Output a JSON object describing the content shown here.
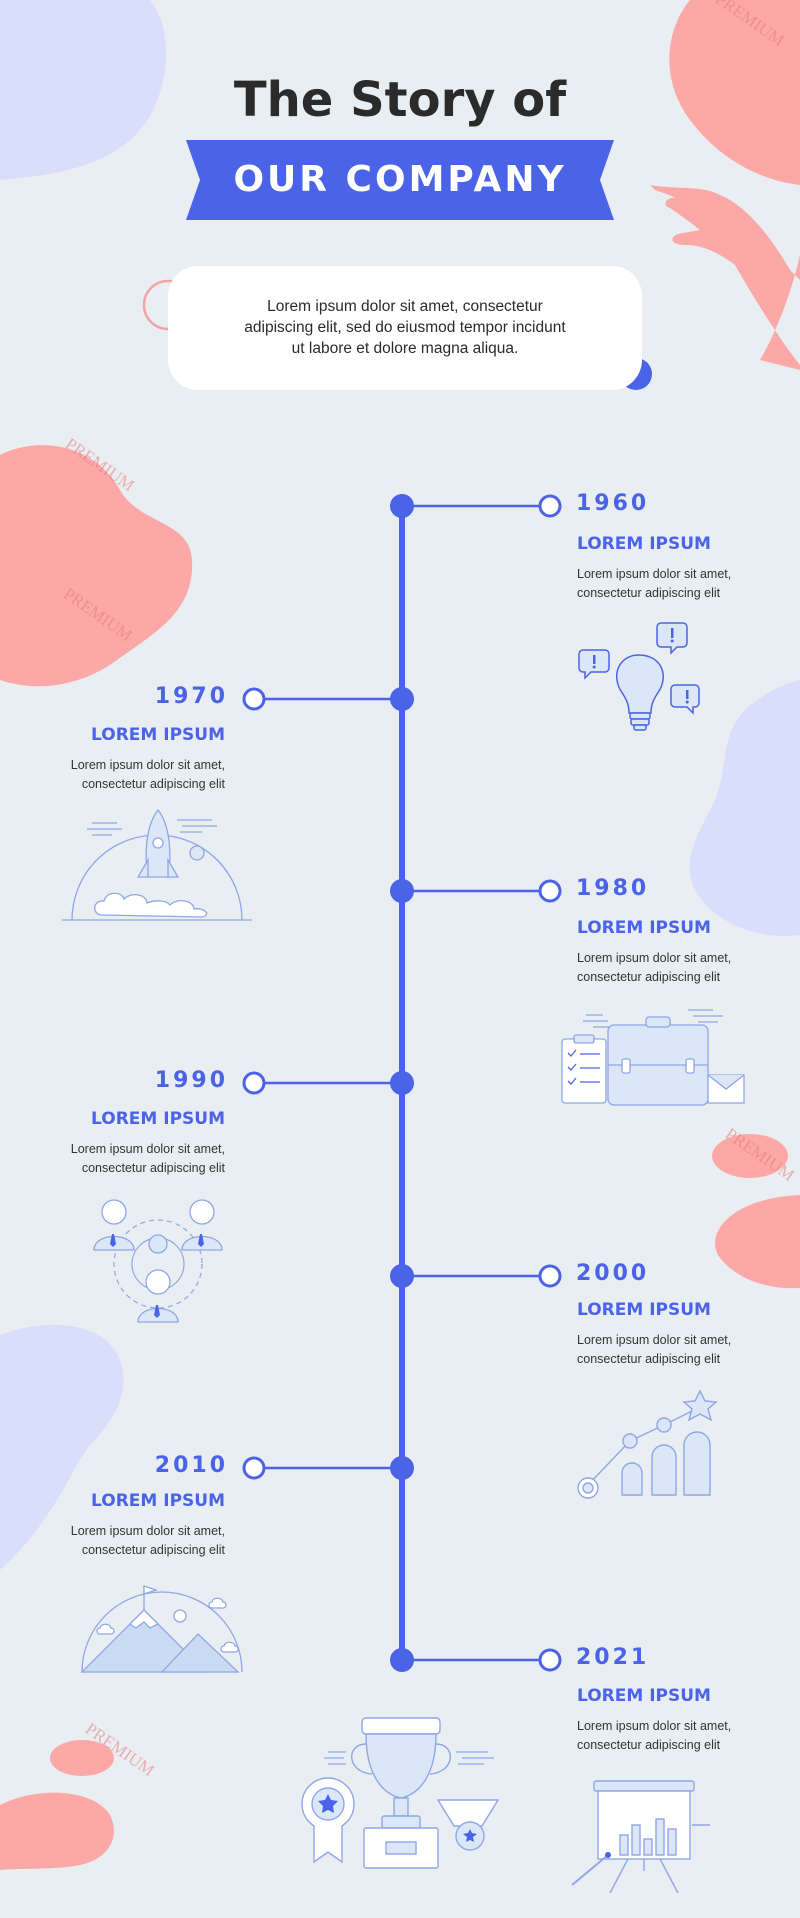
{
  "header": {
    "title": "The Story of",
    "banner": "OUR COMPANY",
    "intro": "Lorem ipsum dolor sit amet, consectetur adipiscing elit, sed do eiusmod tempor incidunt ut labore et dolore magna aliqua."
  },
  "colors": {
    "accent": "#4a63e7",
    "background": "#e9eef3",
    "blob_pink": "#fba8a6",
    "blob_lavender": "#d9defa",
    "icon_fill": "#c9dcf4"
  },
  "watermark": "PREMIUM",
  "timeline": [
    {
      "year": "1960",
      "heading": "LOREM IPSUM",
      "text": "Lorem ipsum dolor sit amet, consectetur adipiscing elit",
      "icon": "lightbulb-icon"
    },
    {
      "year": "1970",
      "heading": "LOREM IPSUM",
      "text": "Lorem ipsum dolor sit amet, consectetur adipiscing elit",
      "icon": "rocket-icon"
    },
    {
      "year": "1980",
      "heading": "LOREM IPSUM",
      "text": "Lorem ipsum dolor sit amet, consectetur adipiscing elit",
      "icon": "briefcase-icon"
    },
    {
      "year": "1990",
      "heading": "LOREM IPSUM",
      "text": "Lorem ipsum dolor sit amet, consectetur adipiscing elit",
      "icon": "team-icon"
    },
    {
      "year": "2000",
      "heading": "LOREM IPSUM",
      "text": "Lorem ipsum dolor sit amet, consectetur adipiscing elit",
      "icon": "growth-chart-icon"
    },
    {
      "year": "2010",
      "heading": "LOREM IPSUM",
      "text": "Lorem ipsum dolor sit amet, consectetur adipiscing elit",
      "icon": "mountain-flag-icon"
    },
    {
      "year": "2021",
      "heading": "LOREM IPSUM",
      "text": "Lorem ipsum dolor sit amet, consectetur adipiscing elit",
      "icon": "presentation-board-icon"
    }
  ],
  "footer_icon": "trophy-icon"
}
